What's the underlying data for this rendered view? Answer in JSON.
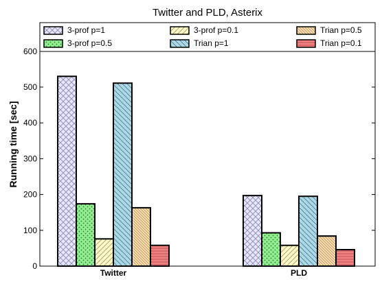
{
  "chart_data": {
    "type": "bar",
    "title": "Twitter and PLD, Asterix",
    "xlabel": "",
    "ylabel": "Running time [sec]",
    "ylim": [
      0,
      680
    ],
    "yticks": [
      0,
      100,
      200,
      300,
      400,
      500,
      600
    ],
    "categories": [
      "Twitter",
      "PLD"
    ],
    "grid": false,
    "legend_position": "top",
    "series": [
      {
        "name": "3-prof p=1",
        "values": [
          530,
          197
        ],
        "color": "#e6e6fa",
        "hatch": "crosshatch"
      },
      {
        "name": "3-prof p=0.5",
        "values": [
          174,
          93
        ],
        "color": "#90ee90",
        "hatch": "dots"
      },
      {
        "name": "3-prof p=0.1",
        "values": [
          76,
          58
        ],
        "color": "#fffacd",
        "hatch": "diag-up"
      },
      {
        "name": "Trian p=1",
        "values": [
          511,
          195
        ],
        "color": "#add8e6",
        "hatch": "diag-down"
      },
      {
        "name": "Trian p=0.5",
        "values": [
          163,
          84
        ],
        "color": "#f5deb3",
        "hatch": "diag-dense"
      },
      {
        "name": "Trian p=0.1",
        "values": [
          58,
          46
        ],
        "color": "#f08080",
        "hatch": "horizontal"
      }
    ]
  }
}
